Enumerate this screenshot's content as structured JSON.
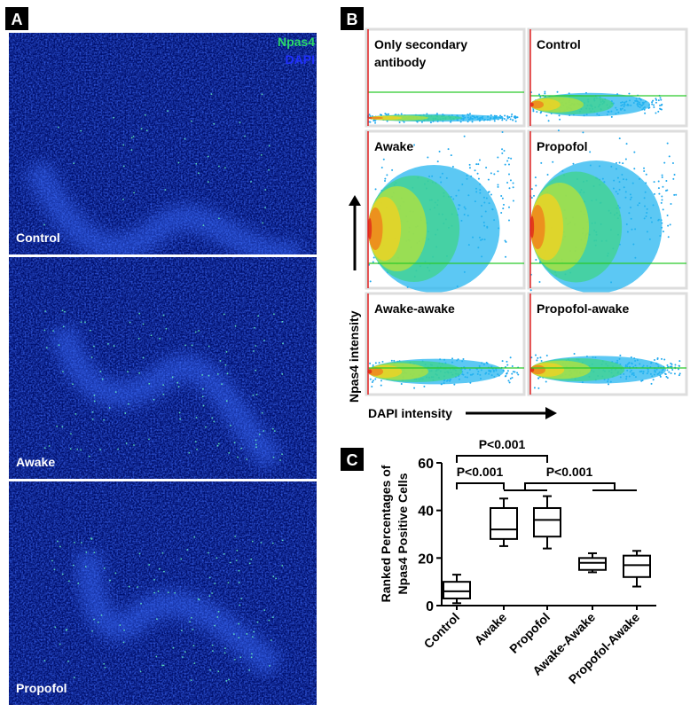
{
  "panel_a": {
    "label": "A",
    "legend": [
      "Npas4",
      "DAPI"
    ],
    "images": [
      "Control",
      "Awake",
      "Propofol"
    ]
  },
  "panel_b": {
    "label": "B",
    "plots": [
      [
        "Only secondary",
        "antibody"
      ],
      [
        "Control"
      ],
      [
        "Awake"
      ],
      [
        "Propofol"
      ],
      [
        "Awake-awake"
      ],
      [
        "Propofol-awake"
      ]
    ],
    "ylabel": "Npas4 intensity",
    "xlabel": "DAPI intensity"
  },
  "chart_data": {
    "type": "box",
    "panel_label": "C",
    "ylabel": [
      "Ranked Percentages of",
      "Npas4 Positive Cells"
    ],
    "categories": [
      "Control",
      "Awake",
      "Propofol",
      "Awake-Awake",
      "Propofol-Awake"
    ],
    "boxes": [
      {
        "min": 1,
        "q1": 3,
        "median": 6,
        "q3": 10,
        "max": 13
      },
      {
        "min": 25,
        "q1": 28,
        "median": 32,
        "q3": 41,
        "max": 45
      },
      {
        "min": 24,
        "q1": 29,
        "median": 36,
        "q3": 41,
        "max": 46
      },
      {
        "min": 14,
        "q1": 15,
        "median": 18,
        "q3": 20,
        "max": 22
      },
      {
        "min": 8,
        "q1": 12,
        "median": 17,
        "q3": 21,
        "max": 23
      }
    ],
    "color": "#000000",
    "ylim": [
      0,
      60
    ],
    "yticks": [
      0,
      20,
      40,
      60
    ],
    "annotations": [
      "P<0.001",
      "P<0.001",
      "P<0.001"
    ]
  }
}
